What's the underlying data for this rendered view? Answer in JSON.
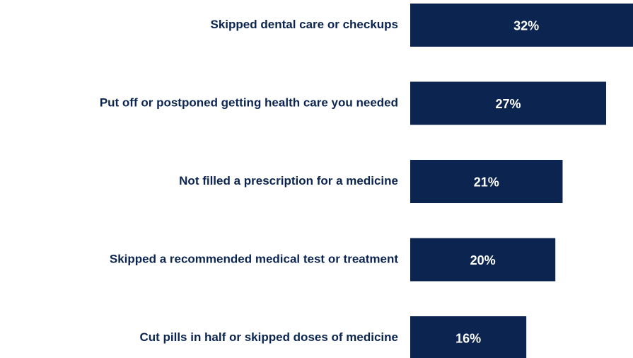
{
  "chart_data": {
    "type": "bar",
    "orientation": "horizontal",
    "categories": [
      "Skipped dental care or checkups",
      "Put off or postponed getting health care you needed",
      "Not filled a prescription for a medicine",
      "Skipped a recommended medical test or treatment",
      "Cut pills in half or skipped doses of medicine"
    ],
    "values": [
      32,
      27,
      21,
      20,
      16
    ],
    "value_labels": [
      "32%",
      "27%",
      "21%",
      "20%",
      "16%"
    ],
    "color": "#0b2550"
  }
}
